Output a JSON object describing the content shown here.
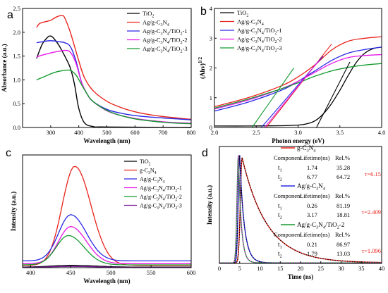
{
  "chart_data": [
    {
      "panel": "a",
      "type": "line",
      "xlabel": "Wavelength (nm)",
      "ylabel": "Absorbance (a.u.)",
      "xlim": [
        200,
        800
      ],
      "ylim": [
        0,
        2.5
      ],
      "xticks": [
        300,
        400,
        500,
        600,
        700,
        800
      ],
      "xtick_labels": [
        "300",
        "400",
        "500",
        "600",
        "700",
        "800"
      ],
      "yticks": [
        0.0,
        0.5,
        1.0,
        1.5,
        2.0,
        2.5
      ],
      "ytick_labels": [
        "0.0",
        "0.5",
        "1.0",
        "1.5",
        "2.0",
        "2.5"
      ],
      "legend_position": "top-right",
      "series": [
        {
          "name": "TiO2",
          "name_main": "TiO",
          "name_sub": "2",
          "color": "#000000",
          "x": [
            250,
            270,
            290,
            300,
            310,
            330,
            350,
            370,
            385,
            400,
            420,
            450,
            500,
            800
          ],
          "y": [
            1.45,
            1.75,
            1.9,
            1.92,
            1.88,
            1.72,
            1.5,
            1.25,
            0.9,
            0.4,
            0.1,
            0.02,
            0.01,
            0.0
          ]
        },
        {
          "name": "Ag/g-C3N4",
          "name_main": "Ag/g-C",
          "name_sub": "3",
          "name_main2": "N",
          "name_sub2": "4",
          "color": "#e8241c",
          "x": [
            250,
            260,
            280,
            300,
            320,
            340,
            350,
            370,
            400,
            420,
            450,
            500,
            550,
            600,
            650,
            700,
            750,
            800
          ],
          "y": [
            2.1,
            2.18,
            2.22,
            2.25,
            2.32,
            2.35,
            2.3,
            2.0,
            1.4,
            1.05,
            0.78,
            0.55,
            0.42,
            0.33,
            0.27,
            0.23,
            0.2,
            0.17
          ]
        },
        {
          "name": "Ag/g-C3N4/TiO2-1",
          "name_main": "Ag/g-C",
          "name_sub": "3",
          "name_main2": "N",
          "name_sub2": "4",
          "name_main3": "/TiO",
          "name_sub3": "2",
          "name_tail": "-1",
          "color": "#2a28e6",
          "x": [
            250,
            270,
            290,
            310,
            330,
            350,
            370,
            390,
            410,
            430,
            450,
            500,
            550,
            600,
            650,
            700,
            750,
            800
          ],
          "y": [
            1.78,
            1.8,
            1.82,
            1.82,
            1.8,
            1.78,
            1.7,
            1.4,
            0.95,
            0.7,
            0.55,
            0.38,
            0.3,
            0.25,
            0.22,
            0.2,
            0.18,
            0.16
          ]
        },
        {
          "name": "Ag/g-C3N4/TiO2-2",
          "name_main": "Ag/g-C",
          "name_sub": "3",
          "name_main2": "N",
          "name_sub2": "4",
          "name_main3": "/TiO",
          "name_sub3": "2",
          "name_tail": "-2",
          "color": "#e617e6",
          "x": [
            250,
            270,
            290,
            310,
            330,
            350,
            370,
            390,
            410,
            430,
            450,
            500,
            550,
            600,
            650,
            700,
            750,
            800
          ],
          "y": [
            1.48,
            1.52,
            1.55,
            1.58,
            1.6,
            1.62,
            1.58,
            1.35,
            0.95,
            0.7,
            0.55,
            0.35,
            0.25,
            0.19,
            0.15,
            0.12,
            0.1,
            0.09
          ]
        },
        {
          "name": "Ag/g-C3N4/TiO2-3",
          "name_main": "Ag/g-C",
          "name_sub": "3",
          "name_main2": "N",
          "name_sub2": "4",
          "name_main3": "/TiO",
          "name_sub3": "2",
          "name_tail": "-3",
          "color": "#139a2e",
          "x": [
            250,
            270,
            290,
            310,
            330,
            350,
            370,
            390,
            410,
            430,
            450,
            500,
            550,
            600,
            650,
            700,
            750,
            800
          ],
          "y": [
            1.0,
            1.05,
            1.1,
            1.15,
            1.18,
            1.2,
            1.2,
            1.1,
            0.9,
            0.7,
            0.55,
            0.36,
            0.25,
            0.18,
            0.14,
            0.11,
            0.09,
            0.08
          ]
        }
      ]
    },
    {
      "panel": "b",
      "type": "line",
      "xlabel": "Photon energy (eV)",
      "ylabel_main": "(Ahv)",
      "ylabel_sup": "1/2",
      "xlim": [
        2.0,
        4.0
      ],
      "ylim": [
        0,
        4
      ],
      "xticks": [
        2.0,
        2.5,
        3.0,
        3.5,
        4.0
      ],
      "xtick_labels": [
        "2.0",
        "2.5",
        "3.0",
        "3.5",
        "4.0"
      ],
      "yticks": [
        0,
        1,
        2,
        3,
        4
      ],
      "ytick_labels": [
        "0",
        "1",
        "2",
        "3",
        "4"
      ],
      "legend_position": "top-left",
      "series": [
        {
          "name": "TiO2",
          "name_main": "TiO",
          "name_sub": "2",
          "color": "#000000",
          "x": [
            2.0,
            2.4,
            2.8,
            3.0,
            3.1,
            3.2,
            3.3,
            3.4,
            3.5,
            3.6,
            3.7,
            3.8,
            3.9,
            4.0
          ],
          "y": [
            0.05,
            0.05,
            0.06,
            0.08,
            0.12,
            0.22,
            0.45,
            0.8,
            1.25,
            1.75,
            2.2,
            2.5,
            2.65,
            2.7
          ]
        },
        {
          "name": "Ag/g-C3N4",
          "name_main": "Ag/g-C",
          "name_sub": "3",
          "name_main2": "N",
          "name_sub2": "4",
          "color": "#e8241c",
          "x": [
            2.0,
            2.4,
            2.8,
            3.0,
            3.2,
            3.4,
            3.6,
            3.8,
            4.0
          ],
          "y": [
            0.7,
            1.0,
            1.4,
            1.7,
            2.1,
            2.6,
            2.9,
            3.0,
            3.05
          ]
        },
        {
          "name": "Ag/g-C3N4/TiO2-1",
          "name_main": "Ag/g-C",
          "name_sub": "3",
          "name_main2": "N",
          "name_sub2": "4",
          "name_main3": "/TiO",
          "name_sub3": "2",
          "name_tail": "-1",
          "color": "#2a28e6",
          "x": [
            2.0,
            2.4,
            2.8,
            3.0,
            3.2,
            3.4,
            3.6,
            3.8,
            4.0
          ],
          "y": [
            0.55,
            0.85,
            1.25,
            1.55,
            1.9,
            2.25,
            2.5,
            2.62,
            2.7
          ]
        },
        {
          "name": "Ag/g-C3N4/TiO2-2",
          "name_main": "Ag/g-C",
          "name_sub": "3",
          "name_main2": "N",
          "name_sub2": "4",
          "name_main3": "/TiO",
          "name_sub3": "2",
          "name_tail": "-2",
          "color": "#e617e6",
          "x": [
            2.0,
            2.4,
            2.8,
            3.0,
            3.2,
            3.4,
            3.6,
            3.8,
            4.0
          ],
          "y": [
            0.62,
            0.92,
            1.3,
            1.55,
            1.85,
            2.15,
            2.35,
            2.42,
            2.45
          ]
        },
        {
          "name": "Ag/g-C3N4/TiO2-3",
          "name_main": "Ag/g-C",
          "name_sub": "3",
          "name_main2": "N",
          "name_sub2": "4",
          "name_main3": "/TiO",
          "name_sub3": "2",
          "name_tail": "-3",
          "color": "#139a2e",
          "x": [
            2.0,
            2.4,
            2.8,
            3.0,
            3.2,
            3.4,
            3.6,
            3.8,
            4.0
          ],
          "y": [
            0.65,
            0.95,
            1.3,
            1.5,
            1.72,
            1.9,
            2.02,
            2.1,
            2.15
          ]
        }
      ],
      "tangents": [
        {
          "color": "#000000",
          "x": [
            3.22,
            3.62
          ],
          "y": [
            0.0,
            2.2
          ]
        },
        {
          "color": "#e8241c",
          "x": [
            2.62,
            3.4
          ],
          "y": [
            0.0,
            2.8
          ]
        },
        {
          "color": "#2a28e6",
          "x": [
            2.56,
            3.3
          ],
          "y": [
            0.0,
            2.4
          ]
        },
        {
          "color": "#e617e6",
          "x": [
            2.6,
            3.25
          ],
          "y": [
            0.0,
            2.25
          ]
        },
        {
          "color": "#139a2e",
          "x": [
            2.45,
            2.95
          ],
          "y": [
            0.0,
            2.0
          ]
        }
      ]
    },
    {
      "panel": "c",
      "type": "line",
      "xlabel": "Wavelength (nm)",
      "ylabel": "Intensity (a.u.)",
      "xlim": [
        390,
        600
      ],
      "xticks": [
        400,
        450,
        500,
        550,
        600
      ],
      "xtick_labels": [
        "400",
        "450",
        "500",
        "550",
        "600"
      ],
      "ylim": [
        0,
        100
      ],
      "legend_position": "top-left",
      "series": [
        {
          "name": "TiO2",
          "name_main": "TiO",
          "name_sub": "2",
          "color": "#000000",
          "peak": 1.5,
          "center": 450,
          "width": 40,
          "base": 0.5
        },
        {
          "name": "g-C3N4",
          "name_main": "g-C",
          "name_sub": "3",
          "name_main2": "N",
          "name_sub2": "4",
          "color": "#e8241c",
          "peak": 88,
          "center": 455,
          "width": 26,
          "base": 2
        },
        {
          "name": "Ag/g-C3N4",
          "name_main": "Ag/g-C",
          "name_sub": "3",
          "name_main2": "N",
          "name_sub2": "4",
          "color": "#2a28e6",
          "peak": 41,
          "center": 450,
          "width": 25,
          "base": 6
        },
        {
          "name": "Ag/g-C3N4/TiO2-1",
          "name_main": "Ag/g-C",
          "name_sub": "3",
          "name_main2": "N",
          "name_sub2": "4",
          "name_main3": "/TiO",
          "name_sub3": "2",
          "name_tail": "-1",
          "color": "#e617e6",
          "peak": 33,
          "center": 450,
          "width": 25,
          "base": 3.5
        },
        {
          "name": "Ag/g-C3N4/TiO2-2",
          "name_main": "Ag/g-C",
          "name_sub": "3",
          "name_main2": "N",
          "name_sub2": "4",
          "name_main3": "/TiO",
          "name_sub3": "2",
          "name_tail": "-2",
          "color": "#139a2e",
          "peak": 26,
          "center": 447,
          "width": 25,
          "base": 2.5
        },
        {
          "name": "Ag/g-C3N4/TiO2-3",
          "name_main": "Ag/g-C",
          "name_sub": "3",
          "name_main2": "N",
          "name_sub2": "4",
          "name_main3": "/TiO",
          "name_sub3": "2",
          "name_tail": "-3",
          "color": "#7a1a9a",
          "peak": 0.8,
          "center": 450,
          "width": 40,
          "base": 0.3
        }
      ]
    },
    {
      "panel": "d",
      "type": "line",
      "xlabel": "Time (ns)",
      "ylabel": "Intensity (a.u.)",
      "xlim": [
        0,
        40
      ],
      "xticks": [
        0,
        5,
        10,
        15,
        20,
        25,
        30,
        35,
        40
      ],
      "xtick_labels": [
        "0",
        "5",
        "10",
        "15",
        "20",
        "25",
        "30",
        "35",
        "40"
      ],
      "ylim": [
        0,
        100
      ],
      "series": [
        {
          "name": "g-C3N4",
          "name_main": "g-C",
          "name_sub": "3",
          "name_main2": "N",
          "name_sub2": "4",
          "color": "#e8241c",
          "t0": 5.6,
          "rise": 0.6,
          "tau": 6.15,
          "peak": 90,
          "dotted_color": "#000000"
        },
        {
          "name": "Ag/g-C3N4",
          "name_main": "Ag/g-C",
          "name_sub": "3",
          "name_main2": "N",
          "name_sub2": "4",
          "color": "#2a28e6",
          "t0": 5.0,
          "rise": 0.5,
          "tau": 1.1,
          "peak": 92,
          "dotted_color": "#000000"
        },
        {
          "name": "Ag/g-C3N4/TiO2-2",
          "name_main": "Ag/g-C",
          "name_sub": "3",
          "name_main2": "N",
          "name_sub2": "4",
          "name_main3": "/TiO",
          "name_sub3": "2",
          "name_tail": "-2",
          "color": "#139a2e",
          "t0": 4.7,
          "rise": 0.5,
          "tau": 0.7,
          "peak": 92,
          "dotted_color": "#e617e6"
        }
      ],
      "tables": [
        {
          "header": [
            "Component",
            "Lifetime(ns)",
            "Rel.%"
          ],
          "rows": [
            [
              "t",
              "1",
              "1.74",
              "35.28"
            ],
            [
              "t",
              "2",
              "6.77",
              "64.72"
            ]
          ],
          "tau_label": "τ=6.15"
        },
        {
          "header": [
            "Component",
            "Lifetime(ns)",
            "Rel.%"
          ],
          "rows": [
            [
              "t",
              "1",
              "0.26",
              "81.19"
            ],
            [
              "t",
              "2",
              "3.17",
              "18.81"
            ]
          ],
          "tau_label": "τ=2.409"
        },
        {
          "header": [
            "Component",
            "Lifetime(ns)",
            "Rel.%"
          ],
          "rows": [
            [
              "t",
              "1",
              "0.21",
              "86.97"
            ],
            [
              "t",
              "2",
              "1.79",
              "13.03"
            ]
          ],
          "tau_label": "τ=1.096"
        }
      ]
    }
  ]
}
